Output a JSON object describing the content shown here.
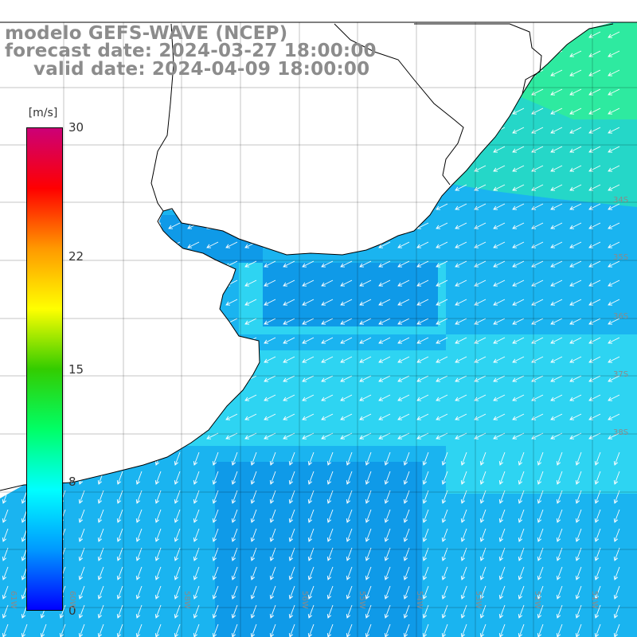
{
  "title": {
    "line1": "modelo GEFS-WAVE (NCEP)",
    "line2": "forecast date: 2024-03-27 18:00:00",
    "line3": "valid date: 2024-04-09 18:00:00"
  },
  "colorbar": {
    "units": "[m/s]",
    "ticks": [
      "30",
      "22",
      "15",
      "8",
      "0"
    ],
    "tick_values": [
      30,
      22,
      15,
      8,
      0
    ],
    "range": [
      0,
      30
    ],
    "colors": [
      "#0000ff",
      "#0099ff",
      "#00ffff",
      "#00ff66",
      "#33cc00",
      "#ffff00",
      "#ff9900",
      "#ff0000",
      "#cc0077"
    ]
  },
  "map": {
    "lat_labels": [
      "34S",
      "35S",
      "36S",
      "37S",
      "38S"
    ],
    "lon_labels": [
      "61W",
      "60W",
      "58W",
      "56W",
      "55W",
      "54W",
      "53W",
      "52W",
      "51W"
    ],
    "lat_range": [
      -41,
      -31
    ],
    "lon_range": [
      -62,
      -51
    ],
    "ocean_wind_speed_ms": 8,
    "wind_direction": "from northeast",
    "colors": {
      "ocean_base": "#1ab4f0",
      "ocean_light": "#2ed4f2",
      "ocean_dark": "#0f9ae8",
      "ocean_green": "#2eeaa0",
      "land": "#ffffff",
      "grid": "#000000",
      "arrows": "#ffffff"
    }
  }
}
